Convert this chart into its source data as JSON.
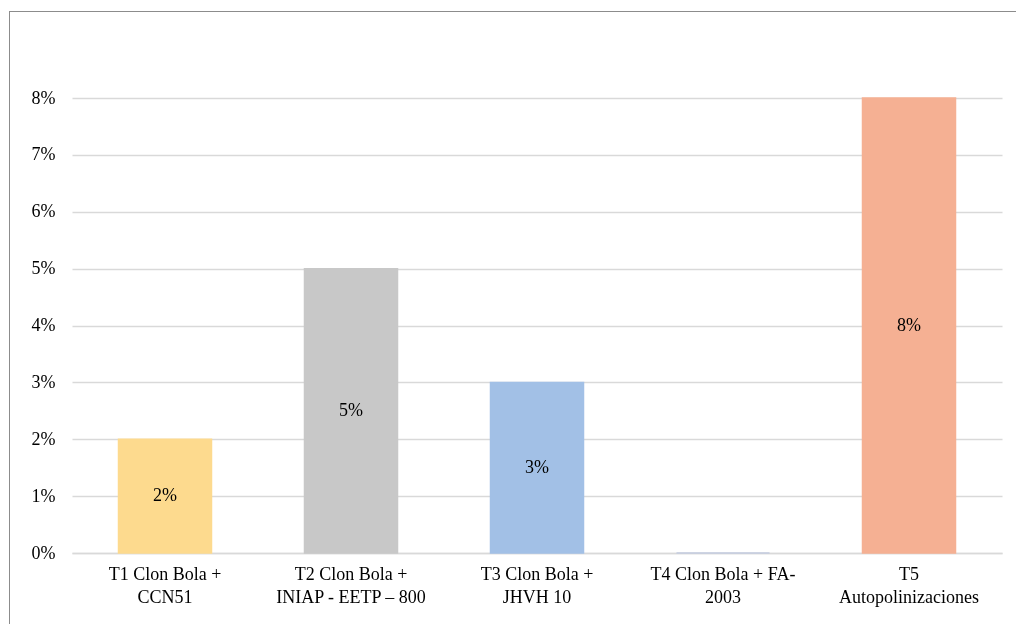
{
  "chart_data": {
    "type": "bar",
    "categories": [
      "T1 Clon Bola + CCN51",
      "T2 Clon Bola + INIAP - EETP – 800",
      "T3 Clon Bola + JHVH 10",
      "T4 Clon Bola + FA-2003",
      "T5 Autopolinizaciones"
    ],
    "values": [
      2,
      5,
      3,
      0,
      8
    ],
    "colors": [
      "#fdda8e",
      "#c8c8c8",
      "#a2c0e6",
      "#c3cbe0",
      "#f5b093"
    ],
    "value_labels": [
      "2%",
      "5%",
      "3%",
      null,
      "8%"
    ],
    "ylim": [
      0,
      8
    ],
    "yticks": [
      {
        "value": 0,
        "label": "0%"
      },
      {
        "value": 1,
        "label": "1%"
      },
      {
        "value": 2,
        "label": "2%"
      },
      {
        "value": 3,
        "label": "3%"
      },
      {
        "value": 4,
        "label": "4%"
      },
      {
        "value": 5,
        "label": "5%"
      },
      {
        "value": 6,
        "label": "6%"
      },
      {
        "value": 7,
        "label": "7%"
      },
      {
        "value": 8,
        "label": "8%"
      }
    ],
    "grid": "y"
  }
}
